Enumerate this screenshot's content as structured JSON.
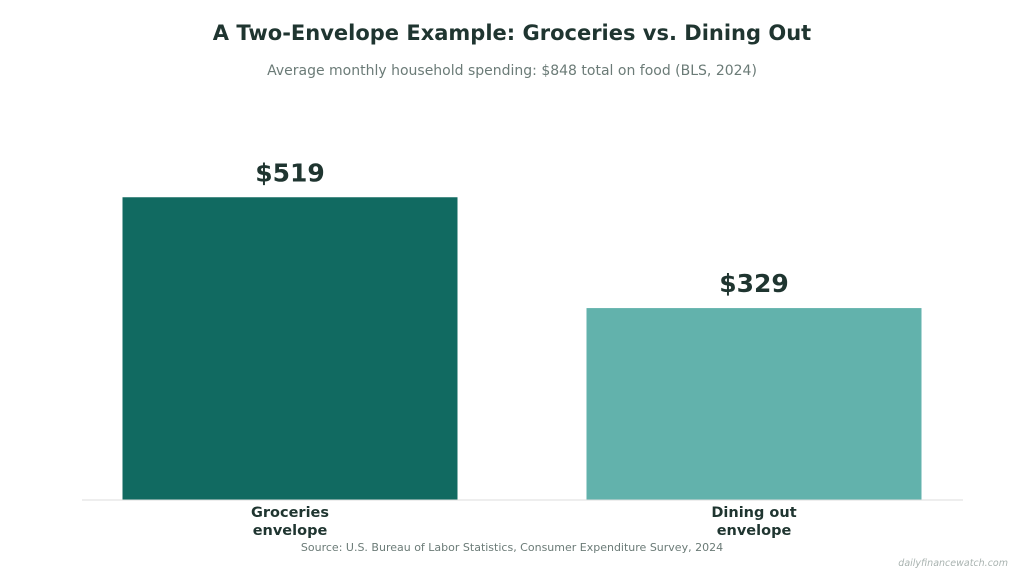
{
  "chart_data": {
    "type": "bar",
    "title": "A Two-Envelope Example: Groceries vs. Dining Out",
    "subtitle": "Average monthly household spending: $848 total on food (BLS, 2024)",
    "categories": [
      {
        "line1": "Groceries",
        "line2": "envelope"
      },
      {
        "line1": "Dining out",
        "line2": "envelope"
      }
    ],
    "values": [
      519,
      329
    ],
    "value_labels": [
      "$519",
      "$329"
    ],
    "colors": [
      "#116a61",
      "#62b2ac"
    ],
    "ylim": [
      0,
      600
    ],
    "grid": false,
    "source": "Source: U.S. Bureau of Labor Statistics, Consumer Expenditure Survey, 2024",
    "watermark": "dailyfinancewatch.com"
  }
}
